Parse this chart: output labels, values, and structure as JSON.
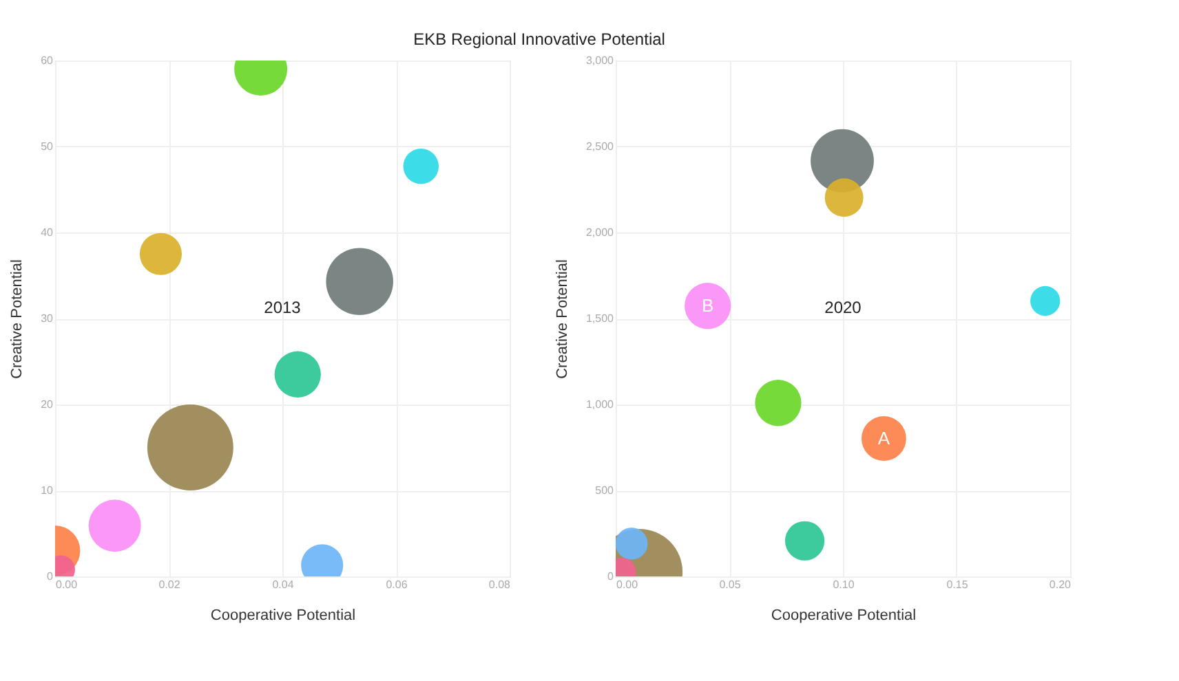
{
  "chart_data": [
    {
      "type": "bubble",
      "title": "EKB Regional Innovative Potential",
      "xlabel": "Cooperative Potential",
      "ylabel": "Creative Potential",
      "annotations": [
        "2013"
      ],
      "grid": true,
      "legend": false,
      "xlim": [
        0,
        0.08
      ],
      "xticks": [
        {
          "value": 0,
          "label": "0.00"
        },
        {
          "value": 0.02,
          "label": "0.02"
        },
        {
          "value": 0.04,
          "label": "0.04"
        },
        {
          "value": 0.06,
          "label": "0.06"
        },
        {
          "value": 0.08,
          "label": "0.08"
        }
      ],
      "ylim": [
        0,
        60
      ],
      "yticks": [
        0,
        10,
        20,
        30,
        40,
        50,
        60
      ],
      "series": [
        {
          "x": [
            0.0362,
            0.0644,
            0.0186,
            0.0536,
            0.0427,
            0.0238,
            0.0105,
            0.0,
            0.001,
            0.047
          ],
          "values": [
            59.0,
            47.7,
            37.5,
            34.3,
            23.5,
            15.0,
            5.9,
            3.0,
            0.8,
            1.3
          ],
          "sizes": [
            0.38,
            0.17,
            0.24,
            0.61,
            0.29,
            1,
            0.37,
            0.34,
            0.11,
            0.24
          ],
          "colors": [
            "#6ad72a",
            "#2bd9e6",
            "#d9b12a",
            "#6f7b7a",
            "#2cc796",
            "#9a8553",
            "#fb8ff6",
            "#fd8149",
            "#f0638e",
            "#6cb5f7"
          ]
        }
      ]
    },
    {
      "type": "bubble",
      "xlabel": "Cooperative Potential",
      "ylabel": "Creative Potential",
      "annotations": [
        "2020",
        {
          "text": "A",
          "x": 0.118,
          "y": 802
        },
        {
          "text": "B",
          "x": 0.0405,
          "y": 1573
        }
      ],
      "grid": true,
      "legend": false,
      "xlim": [
        0,
        0.2
      ],
      "xticks": [
        {
          "value": 0,
          "label": "0.00"
        },
        {
          "value": 0.05,
          "label": "0.05"
        },
        {
          "value": 0.1,
          "label": "0.10"
        },
        {
          "value": 0.15,
          "label": "0.15"
        },
        {
          "value": 0.2,
          "label": "0.20"
        }
      ],
      "ylim": [
        0,
        3000
      ],
      "yticks": [
        0,
        {
          "value": 500,
          "label": "500"
        },
        {
          "value": 1000,
          "label": "1,000"
        },
        {
          "value": 1500,
          "label": "1,500"
        },
        {
          "value": 2000,
          "label": "2,000"
        },
        {
          "value": 2500,
          "label": "2,500"
        },
        {
          "value": 3000,
          "label": "3,000"
        }
      ],
      "series": [
        {
          "x": [
            0.0997,
            0.1005,
            0.0405,
            0.189,
            0.0715,
            0.118,
            0.0832,
            0.0105,
            0.007,
            0.0027
          ],
          "values": [
            2417,
            2203,
            1573,
            1602,
            1009,
            802,
            207,
            26,
            191,
            26
          ],
          "sizes": [
            0.54,
            0.2,
            0.29,
            0.12,
            0.29,
            0.27,
            0.21,
            1,
            0.14,
            0.11
          ],
          "colors": [
            "#6f7b7a",
            "#d9b12a",
            "#fb8ff6",
            "#2bd9e6",
            "#6ad72a",
            "#fd8149",
            "#2cc796",
            "#9a8553",
            "#6cb5f7",
            "#f0638e"
          ]
        }
      ]
    }
  ]
}
